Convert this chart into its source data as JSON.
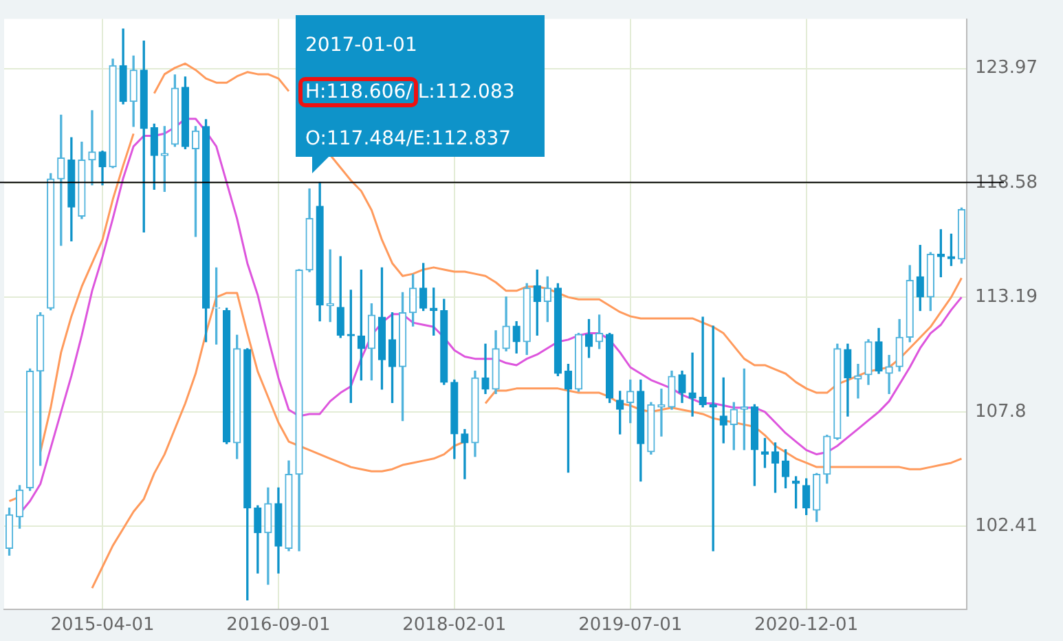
{
  "chart_data": {
    "type": "candlestick",
    "categories": [
      null,
      null,
      null,
      null,
      null,
      null,
      null,
      null,
      null,
      "2015-04-01",
      null,
      null,
      null,
      null,
      null,
      null,
      null,
      null,
      null,
      null,
      null,
      null,
      null,
      null,
      null,
      null,
      "2016-09-01",
      null,
      null,
      null,
      null,
      null,
      null,
      null,
      null,
      null,
      null,
      null,
      null,
      null,
      null,
      null,
      null,
      "2018-02-01",
      null,
      null,
      null,
      null,
      null,
      null,
      null,
      null,
      null,
      null,
      null,
      null,
      null,
      null,
      null,
      null,
      "2019-07-01",
      null,
      null,
      null,
      null,
      null,
      null,
      null,
      null,
      null,
      null,
      null,
      null,
      null,
      null,
      null,
      null,
      "2020-12-01",
      null,
      null,
      null,
      null,
      null,
      null,
      null,
      null,
      null,
      null,
      null,
      null,
      null,
      null,
      null
    ],
    "colors": [
      "#4fb3dc",
      "#4fb3dc",
      "#4fb3dc",
      "#4fb3dc",
      "#4fb3dc",
      "#4fb3dc",
      "#0e93c9",
      "#4fb3dc",
      "#4fb3dc",
      "#0e93c9",
      "#4fb3dc",
      "#0e93c9",
      "#4fb3dc",
      "#0e93c9",
      "#0e93c9",
      "#4fb3dc",
      "#4fb3dc",
      "#0e93c9",
      "#4fb3dc",
      "#0e93c9",
      "#4fb3dc",
      "#0e93c9",
      "#4fb3dc",
      "#0e93c9",
      "#0e93c9",
      "#4fb3dc",
      "#0e93c9",
      "#4fb3dc",
      "#4fb3dc",
      "#4fb3dc",
      "#0e93c9",
      "#4fb3dc",
      "#0e93c9",
      "#0e93c9",
      "#0e93c9",
      "#4fb3dc",
      "#0e93c9",
      "#0e93c9",
      "#4fb3dc",
      "#4fb3dc",
      "#0e93c9",
      "#0e93c9",
      "#0e93c9",
      "#0e93c9",
      "#0e93c9",
      "#4fb3dc",
      "#0e93c9",
      "#4fb3dc",
      "#4fb3dc",
      "#0e93c9",
      "#4fb3dc",
      "#0e93c9",
      "#4fb3dc",
      "#0e93c9",
      "#0e93c9",
      "#4fb3dc",
      "#0e93c9",
      "#4fb3dc",
      "#0e93c9",
      "#0e93c9",
      "#4fb3dc",
      "#0e93c9",
      "#4fb3dc",
      "#4fb3dc",
      "#4fb3dc",
      "#0e93c9",
      "#0e93c9",
      "#0e93c9",
      "#0e93c9",
      "#0e93c9",
      "#4fb3dc",
      "#4fb3dc",
      "#0e93c9",
      "#0e93c9",
      "#0e93c9",
      "#0e93c9",
      "#0e93c9",
      "#0e93c9",
      "#4fb3dc",
      "#4fb3dc",
      "#4fb3dc",
      "#0e93c9",
      "#4fb3dc",
      "#4fb3dc",
      "#0e93c9",
      "#4fb3dc",
      "#4fb3dc",
      "#4fb3dc",
      "#0e93c9",
      "#4fb3dc",
      "#0e93c9",
      "#0e93c9",
      "#4fb3dc"
    ],
    "ohlc": [
      [
        101.37,
        103.27,
        101.05,
        102.96
      ],
      [
        102.85,
        104.33,
        102.32,
        104.12
      ],
      [
        104.22,
        109.82,
        104.1,
        109.72
      ],
      [
        109.72,
        112.47,
        105.28,
        112.36
      ],
      [
        112.68,
        119.02,
        112.6,
        118.77
      ],
      [
        118.77,
        121.77,
        115.64,
        119.76
      ],
      [
        119.66,
        120.71,
        115.85,
        117.44
      ],
      [
        117.01,
        120.5,
        116.9,
        119.66
      ],
      [
        119.66,
        121.98,
        118.49,
        120.04
      ],
      [
        120.04,
        120.08,
        118.49,
        119.34
      ],
      [
        119.34,
        124.41,
        119.3,
        124.1
      ],
      [
        124.1,
        125.83,
        122.3,
        122.41
      ],
      [
        122.41,
        124.56,
        121.24,
        123.89
      ],
      [
        123.89,
        125.26,
        116.27,
        121.14
      ],
      [
        121.18,
        121.35,
        118.28,
        119.87
      ],
      [
        119.87,
        121.24,
        118.18,
        119.97
      ],
      [
        120.4,
        123.67,
        120.3,
        123.04
      ],
      [
        123.08,
        123.57,
        120.19,
        120.29
      ],
      [
        120.19,
        121.24,
        116.06,
        121.03
      ],
      [
        121.24,
        121.56,
        111.1,
        112.68
      ],
      [
        112.68,
        114.58,
        110.99,
        112.7
      ],
      [
        112.57,
        112.68,
        106.3,
        106.38
      ],
      [
        106.34,
        111.41,
        105.6,
        110.78
      ],
      [
        110.74,
        110.78,
        98.94,
        103.27
      ],
      [
        103.27,
        103.38,
        100.21,
        102.11
      ],
      [
        102.11,
        104.22,
        99.68,
        103.48
      ],
      [
        103.48,
        104.22,
        100.21,
        101.48
      ],
      [
        101.37,
        105.49,
        101.26,
        104.86
      ],
      [
        104.86,
        114.5,
        101.26,
        114.48
      ],
      [
        114.48,
        118.3,
        114.4,
        116.91
      ],
      [
        117.484,
        118.606,
        112.083,
        112.837
      ],
      [
        112.8,
        115.43,
        112.05,
        112.9
      ],
      [
        112.72,
        115.11,
        111.3,
        111.41
      ],
      [
        111.45,
        113.53,
        108.24,
        111.39
      ],
      [
        111.37,
        114.48,
        109.3,
        110.78
      ],
      [
        110.78,
        112.89,
        109.3,
        112.36
      ],
      [
        112.26,
        114.58,
        108.87,
        110.25
      ],
      [
        111.2,
        112.47,
        108.24,
        109.93
      ],
      [
        109.93,
        113.42,
        107.39,
        112.47
      ],
      [
        112.47,
        114.27,
        111.84,
        113.63
      ],
      [
        113.63,
        114.79,
        112.57,
        112.68
      ],
      [
        112.68,
        113.63,
        111.41,
        112.57
      ],
      [
        112.57,
        113.1,
        109.09,
        109.19
      ],
      [
        109.19,
        109.3,
        105.6,
        106.76
      ],
      [
        106.76,
        106.97,
        104.65,
        106.34
      ],
      [
        106.34,
        109.72,
        105.7,
        109.4
      ],
      [
        109.4,
        110.99,
        108.66,
        108.87
      ],
      [
        108.87,
        111.62,
        108.66,
        110.78
      ],
      [
        110.78,
        113.21,
        110.67,
        111.84
      ],
      [
        111.84,
        112.05,
        110.57,
        111.1
      ],
      [
        111.1,
        113.84,
        110.5,
        113.63
      ],
      [
        113.74,
        114.48,
        111.41,
        113.0
      ],
      [
        113.0,
        114.16,
        112.05,
        113.63
      ],
      [
        113.63,
        113.84,
        109.5,
        109.61
      ],
      [
        109.72,
        110.04,
        104.96,
        108.87
      ],
      [
        108.87,
        111.5,
        108.77,
        111.45
      ],
      [
        111.45,
        112.15,
        110.36,
        110.88
      ],
      [
        111.1,
        112.36,
        110.78,
        111.5
      ],
      [
        111.45,
        111.5,
        108.24,
        108.45
      ],
      [
        108.35,
        108.77,
        106.76,
        107.92
      ],
      [
        108.24,
        109.3,
        107.29,
        108.77
      ],
      [
        108.77,
        109.3,
        104.54,
        106.3
      ],
      [
        105.92,
        108.24,
        105.81,
        108.14
      ],
      [
        108.03,
        108.87,
        106.66,
        108.14
      ],
      [
        108.03,
        109.72,
        107.92,
        109.47
      ],
      [
        109.55,
        109.72,
        108.24,
        108.7
      ],
      [
        108.7,
        110.57,
        107.6,
        108.45
      ],
      [
        108.49,
        112.26,
        108.03,
        108.14
      ],
      [
        108.14,
        111.84,
        101.26,
        108.03
      ],
      [
        107.6,
        109.4,
        106.34,
        107.18
      ],
      [
        107.2,
        108.24,
        106.02,
        107.92
      ],
      [
        107.92,
        109.82,
        106.02,
        108.03
      ],
      [
        108.03,
        108.14,
        104.33,
        106.02
      ],
      [
        105.92,
        106.55,
        105.18,
        105.81
      ],
      [
        105.92,
        106.34,
        104.01,
        105.39
      ],
      [
        105.49,
        106.02,
        104.22,
        104.75
      ],
      [
        104.54,
        104.75,
        103.27,
        104.43
      ],
      [
        104.33,
        104.65,
        102.96,
        103.27
      ],
      [
        103.17,
        104.9,
        102.64,
        104.86
      ],
      [
        104.86,
        106.7,
        104.44,
        106.66
      ],
      [
        106.55,
        110.99,
        106.5,
        110.78
      ],
      [
        110.74,
        110.99,
        107.6,
        109.4
      ],
      [
        109.35,
        110.04,
        108.45,
        109.5
      ],
      [
        109.55,
        111.2,
        109.09,
        111.1
      ],
      [
        111.1,
        111.73,
        109.61,
        109.72
      ],
      [
        109.61,
        110.46,
        108.66,
        109.93
      ],
      [
        109.93,
        112.15,
        109.72,
        111.31
      ],
      [
        111.31,
        114.69,
        111.1,
        113.99
      ],
      [
        114.16,
        115.64,
        112.57,
        113.21
      ],
      [
        113.21,
        115.3,
        112.57,
        115.22
      ],
      [
        115.22,
        116.38,
        114.16,
        115.11
      ],
      [
        115.11,
        116.17,
        114.69,
        115.01
      ],
      [
        115.0,
        117.4,
        114.8,
        117.33
      ]
    ],
    "series": [
      {
        "type": "line",
        "color": "#ff9a5c",
        "values": [
          103.6,
          103.8,
          null,
          105.9,
          108.0,
          110.6,
          112.3,
          113.7,
          114.8,
          115.9,
          117.8,
          119.4,
          120.9,
          null,
          122.8,
          123.7,
          124.0,
          124.2,
          123.9,
          123.5,
          123.3,
          123.3,
          123.6,
          123.8,
          123.7,
          123.7,
          123.5,
          122.9,
          null,
          null,
          null,
          119.9,
          119.3,
          118.7,
          118.2,
          117.3,
          115.9,
          114.8,
          114.2,
          114.3,
          114.5,
          114.6,
          114.5,
          114.4,
          114.4,
          114.3,
          114.2,
          113.9,
          113.5,
          113.5,
          113.7,
          113.7,
          113.6,
          113.4,
          113.2,
          113.1,
          113.1,
          113.1,
          112.8,
          112.5,
          112.3,
          112.2,
          112.2,
          112.2,
          112.2,
          112.2,
          112.2,
          112.0,
          111.8,
          111.5,
          110.9,
          110.3,
          110.0,
          110.0,
          109.8,
          109.6,
          109.2,
          108.9,
          108.7,
          108.7,
          109.1,
          109.3,
          109.5,
          109.7,
          109.8,
          109.9,
          110.3,
          110.8,
          111.3,
          111.8,
          112.5,
          113.2,
          114.1
        ]
      },
      {
        "type": "line",
        "color": "#dd55dd",
        "values": [
          null,
          103.0,
          103.6,
          104.4,
          106.1,
          107.8,
          109.5,
          111.4,
          113.5,
          115.1,
          116.9,
          118.8,
          120.3,
          120.8,
          120.8,
          120.9,
          121.2,
          121.6,
          121.6,
          121.0,
          120.3,
          118.6,
          116.9,
          114.8,
          113.3,
          111.3,
          109.4,
          107.9,
          107.6,
          107.7,
          107.7,
          108.3,
          108.7,
          109.0,
          110.3,
          111.4,
          112.0,
          112.4,
          112.4,
          112.0,
          111.9,
          111.8,
          111.3,
          110.7,
          110.4,
          110.3,
          110.3,
          110.3,
          110.1,
          110.0,
          110.3,
          110.5,
          110.8,
          111.1,
          111.2,
          111.4,
          111.5,
          111.5,
          111.2,
          110.6,
          109.9,
          109.6,
          109.3,
          109.1,
          108.9,
          108.6,
          108.4,
          108.2,
          108.2,
          108.1,
          108.0,
          108.0,
          108.0,
          107.8,
          107.3,
          106.8,
          106.4,
          106.0,
          105.8,
          105.9,
          106.2,
          106.6,
          107.0,
          107.4,
          107.8,
          108.3,
          109.1,
          109.9,
          110.8,
          111.5,
          111.9,
          112.6,
          113.2
        ]
      },
      {
        "type": "line",
        "color": "#ff9a5c",
        "values": [
          null,
          null,
          null,
          null,
          null,
          null,
          null,
          null,
          99.5,
          100.5,
          101.5,
          102.3,
          103.1,
          103.7,
          104.9,
          105.8,
          107.0,
          108.2,
          109.6,
          111.5,
          113.2,
          113.4,
          113.4,
          111.5,
          109.7,
          108.5,
          107.3,
          106.4,
          106.2,
          106.0,
          105.8,
          105.6,
          105.4,
          105.2,
          105.1,
          105.0,
          105.0,
          105.1,
          105.3,
          105.4,
          105.5,
          105.6,
          105.8,
          106.2,
          106.4,
          null,
          108.2,
          108.8,
          108.8,
          108.9,
          108.9,
          108.9,
          108.9,
          108.9,
          108.8,
          108.7,
          108.7,
          108.7,
          108.5,
          108.2,
          108.1,
          107.9,
          107.8,
          107.9,
          108.0,
          107.9,
          107.8,
          107.7,
          107.5,
          107.4,
          107.3,
          107.2,
          107.1,
          106.7,
          106.2,
          105.9,
          105.6,
          105.4,
          105.2,
          105.2,
          105.2,
          105.2,
          105.2,
          105.2,
          105.2,
          105.2,
          105.2,
          105.1,
          105.1,
          105.2,
          105.3,
          105.4,
          105.6
        ]
      }
    ],
    "ylim": [
      98.5,
      126.3
    ],
    "yticks": [
      102.41,
      107.8,
      113.19,
      118.58,
      123.97
    ],
    "grid": true,
    "legend": false,
    "marker": "none",
    "ref_lines": [
      {
        "axis": "y",
        "value": 118.606,
        "color": "#000000"
      }
    ],
    "annotations": [
      "2017-01-01",
      "H:118.606/",
      "L:112.083",
      "O:117.484/E:112.837"
    ]
  }
}
